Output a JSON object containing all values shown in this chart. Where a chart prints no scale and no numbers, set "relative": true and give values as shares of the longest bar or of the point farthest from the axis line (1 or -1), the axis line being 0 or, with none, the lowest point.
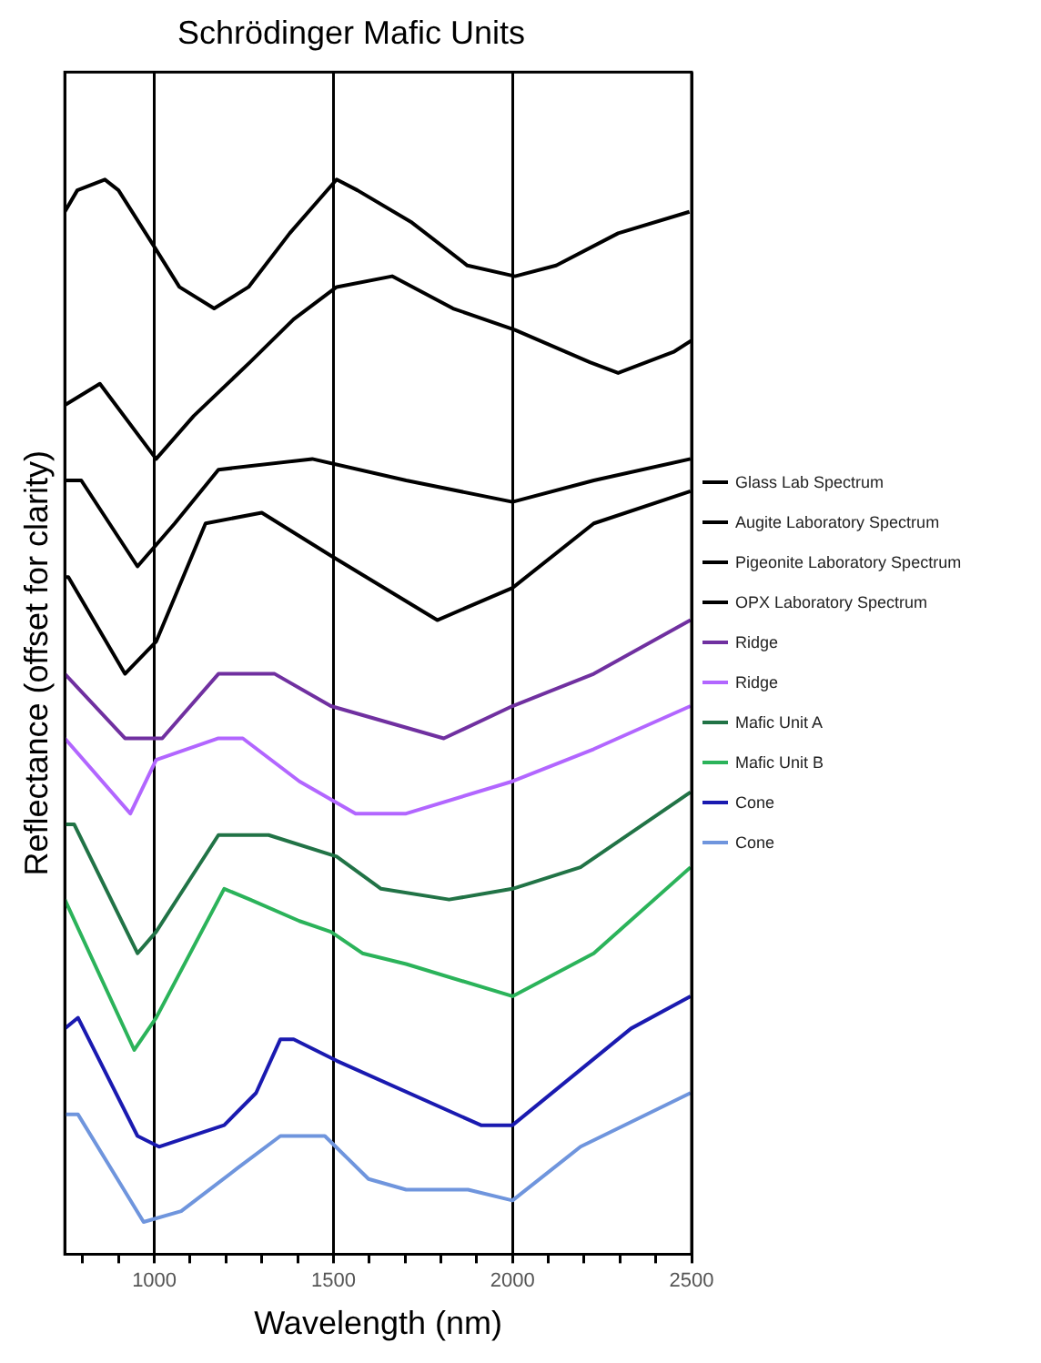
{
  "chart_data": {
    "type": "line",
    "title": "Schrödinger Mafic Units",
    "xlabel": "Wavelength (nm)",
    "ylabel": "Reflectance (offset for clarity)",
    "relative": true,
    "xlim": [
      750,
      2500
    ],
    "xticks": [
      {
        "value": 800,
        "label": null
      },
      {
        "value": 900,
        "label": null
      },
      1000,
      {
        "value": 1100,
        "label": null
      },
      {
        "value": 1200,
        "label": null
      },
      {
        "value": 1300,
        "label": null
      },
      {
        "value": 1400,
        "label": null
      },
      1500,
      {
        "value": 1600,
        "label": null
      },
      {
        "value": 1700,
        "label": null
      },
      {
        "value": 1800,
        "label": null
      },
      {
        "value": 1900,
        "label": null
      },
      2000,
      {
        "value": 2100,
        "label": null
      },
      {
        "value": 2200,
        "label": null
      },
      {
        "value": 2300,
        "label": null
      },
      {
        "value": 2400,
        "label": null
      },
      2500
    ],
    "grid": "x",
    "legend": "right",
    "marker": "none",
    "line_style": "solid",
    "series": [
      {
        "name": "Glass Lab Spectrum",
        "color": "#000000",
        "x": [
          750,
          785,
          862,
          900,
          995,
          1070,
          1167,
          1263,
          1378,
          1509,
          1567,
          1719,
          1874,
          2007,
          2122,
          2295,
          2494
        ],
        "values": [
          0.97,
          0.99,
          1.0,
          0.99,
          0.94,
          0.9,
          0.88,
          0.9,
          0.95,
          1.0,
          0.99,
          0.96,
          0.92,
          0.91,
          0.92,
          0.95,
          0.97
        ]
      },
      {
        "name": "Augite Laboratory Spectrum",
        "color": "#000000",
        "x": [
          750,
          848,
          1005,
          1110,
          1267,
          1389,
          1509,
          1664,
          1834,
          2007,
          2216,
          2295,
          2452,
          2499
        ],
        "values": [
          0.79,
          0.81,
          0.74,
          0.78,
          0.83,
          0.87,
          0.9,
          0.91,
          0.88,
          0.86,
          0.83,
          0.82,
          0.84,
          0.85
        ]
      },
      {
        "name": "Pigeonite Laboratory Spectrum",
        "color": "#000000",
        "x": [
          750,
          796,
          953,
          1057,
          1179,
          1441,
          1703,
          2000,
          2227,
          2497
        ],
        "values": [
          0.72,
          0.72,
          0.64,
          0.68,
          0.73,
          0.74,
          0.72,
          0.7,
          0.72,
          0.74
        ]
      },
      {
        "name": "OPX Laboratory Spectrum",
        "color": "#000000",
        "x": [
          750,
          760,
          918,
          1005,
          1143,
          1300,
          1493,
          1790,
          2000,
          2227,
          2497
        ],
        "values": [
          0.63,
          0.63,
          0.54,
          0.57,
          0.68,
          0.69,
          0.65,
          0.59,
          0.62,
          0.68,
          0.71
        ]
      },
      {
        "name": "Ridge",
        "color": "#7030a0",
        "x": [
          750,
          918,
          1022,
          1179,
          1336,
          1493,
          1808,
          2000,
          2227,
          2497
        ],
        "values": [
          0.54,
          0.48,
          0.48,
          0.54,
          0.54,
          0.51,
          0.48,
          0.51,
          0.54,
          0.59
        ]
      },
      {
        "name": "Ridge",
        "color": "#b266ff",
        "x": [
          750,
          933,
          1005,
          1179,
          1247,
          1405,
          1562,
          1703,
          2000,
          2227,
          2497
        ],
        "values": [
          0.48,
          0.41,
          0.46,
          0.48,
          0.48,
          0.44,
          0.41,
          0.41,
          0.44,
          0.47,
          0.51
        ]
      },
      {
        "name": "Mafic Unit A",
        "color": "#217346",
        "x": [
          750,
          776,
          953,
          1005,
          1179,
          1319,
          1509,
          1633,
          1823,
          2000,
          2190,
          2497
        ],
        "values": [
          0.4,
          0.4,
          0.28,
          0.3,
          0.39,
          0.39,
          0.37,
          0.34,
          0.33,
          0.34,
          0.36,
          0.43
        ]
      },
      {
        "name": "Mafic Unit B",
        "color": "#2bb35a",
        "x": [
          750,
          944,
          1005,
          1195,
          1267,
          1405,
          1493,
          1581,
          1703,
          2000,
          2227,
          2497
        ],
        "values": [
          0.33,
          0.19,
          0.22,
          0.34,
          0.33,
          0.31,
          0.3,
          0.28,
          0.27,
          0.24,
          0.28,
          0.36
        ]
      },
      {
        "name": "Cone",
        "color": "#1a1ab0",
        "x": [
          750,
          787,
          953,
          1013,
          1195,
          1284,
          1352,
          1389,
          1509,
          1912,
          2000,
          2331,
          2497
        ],
        "values": [
          0.21,
          0.22,
          0.11,
          0.1,
          0.12,
          0.15,
          0.2,
          0.2,
          0.18,
          0.12,
          0.12,
          0.21,
          0.24
        ]
      },
      {
        "name": "Cone",
        "color": "#6f95dd",
        "x": [
          750,
          787,
          970,
          1075,
          1232,
          1352,
          1476,
          1598,
          1703,
          1876,
          2000,
          2190,
          2497
        ],
        "values": [
          0.13,
          0.13,
          0.03,
          0.04,
          0.08,
          0.11,
          0.11,
          0.07,
          0.06,
          0.06,
          0.05,
          0.1,
          0.15
        ]
      }
    ]
  }
}
